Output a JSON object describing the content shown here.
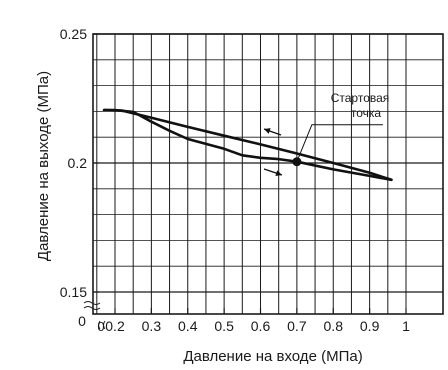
{
  "chart_data": {
    "type": "line",
    "title": "",
    "xlabel": "Давление на входе (МПа)",
    "ylabel": "Давление на выходе (МПа)",
    "xlim": [
      0.1,
      1.0
    ],
    "ylim": [
      0.15,
      0.25
    ],
    "x_break_label": "0",
    "y_break_label": "0",
    "x_ticks": [
      {
        "v": 0.2,
        "label": "0.2"
      },
      {
        "v": 0.3,
        "label": "0.3"
      },
      {
        "v": 0.4,
        "label": "0.4"
      },
      {
        "v": 0.5,
        "label": "0.5"
      },
      {
        "v": 0.6,
        "label": "0.6"
      },
      {
        "v": 0.7,
        "label": "0.7"
      },
      {
        "v": 0.8,
        "label": "0.8"
      },
      {
        "v": 0.9,
        "label": "0.9"
      },
      {
        "v": 1.0,
        "label": "1"
      }
    ],
    "y_ticks": [
      {
        "v": 0.15,
        "label": "0.15"
      },
      {
        "v": 0.2,
        "label": "0.2"
      },
      {
        "v": 0.25,
        "label": "0.25"
      }
    ],
    "series": [
      {
        "x": [
          0.17,
          0.22,
          0.3,
          0.4,
          0.5,
          0.6,
          0.7,
          0.8,
          0.9,
          0.96
        ],
        "y": [
          0.2205,
          0.2203,
          0.2175,
          0.214,
          0.2106,
          0.2072,
          0.2037,
          0.2,
          0.1962,
          0.1935
        ]
      },
      {
        "x": [
          0.17,
          0.2,
          0.25,
          0.3,
          0.35,
          0.4,
          0.5,
          0.55,
          0.6,
          0.65,
          0.7,
          0.8,
          0.9,
          0.96
        ],
        "y": [
          0.2205,
          0.2205,
          0.2198,
          0.216,
          0.2125,
          0.2093,
          0.2055,
          0.203,
          0.202,
          0.2015,
          0.2005,
          0.1975,
          0.195,
          0.1935
        ]
      }
    ],
    "start_point": {
      "x": 0.7,
      "y": 0.2005
    },
    "annotation": {
      "line1": "Стартовая",
      "line2": "точка"
    },
    "grid": true
  }
}
